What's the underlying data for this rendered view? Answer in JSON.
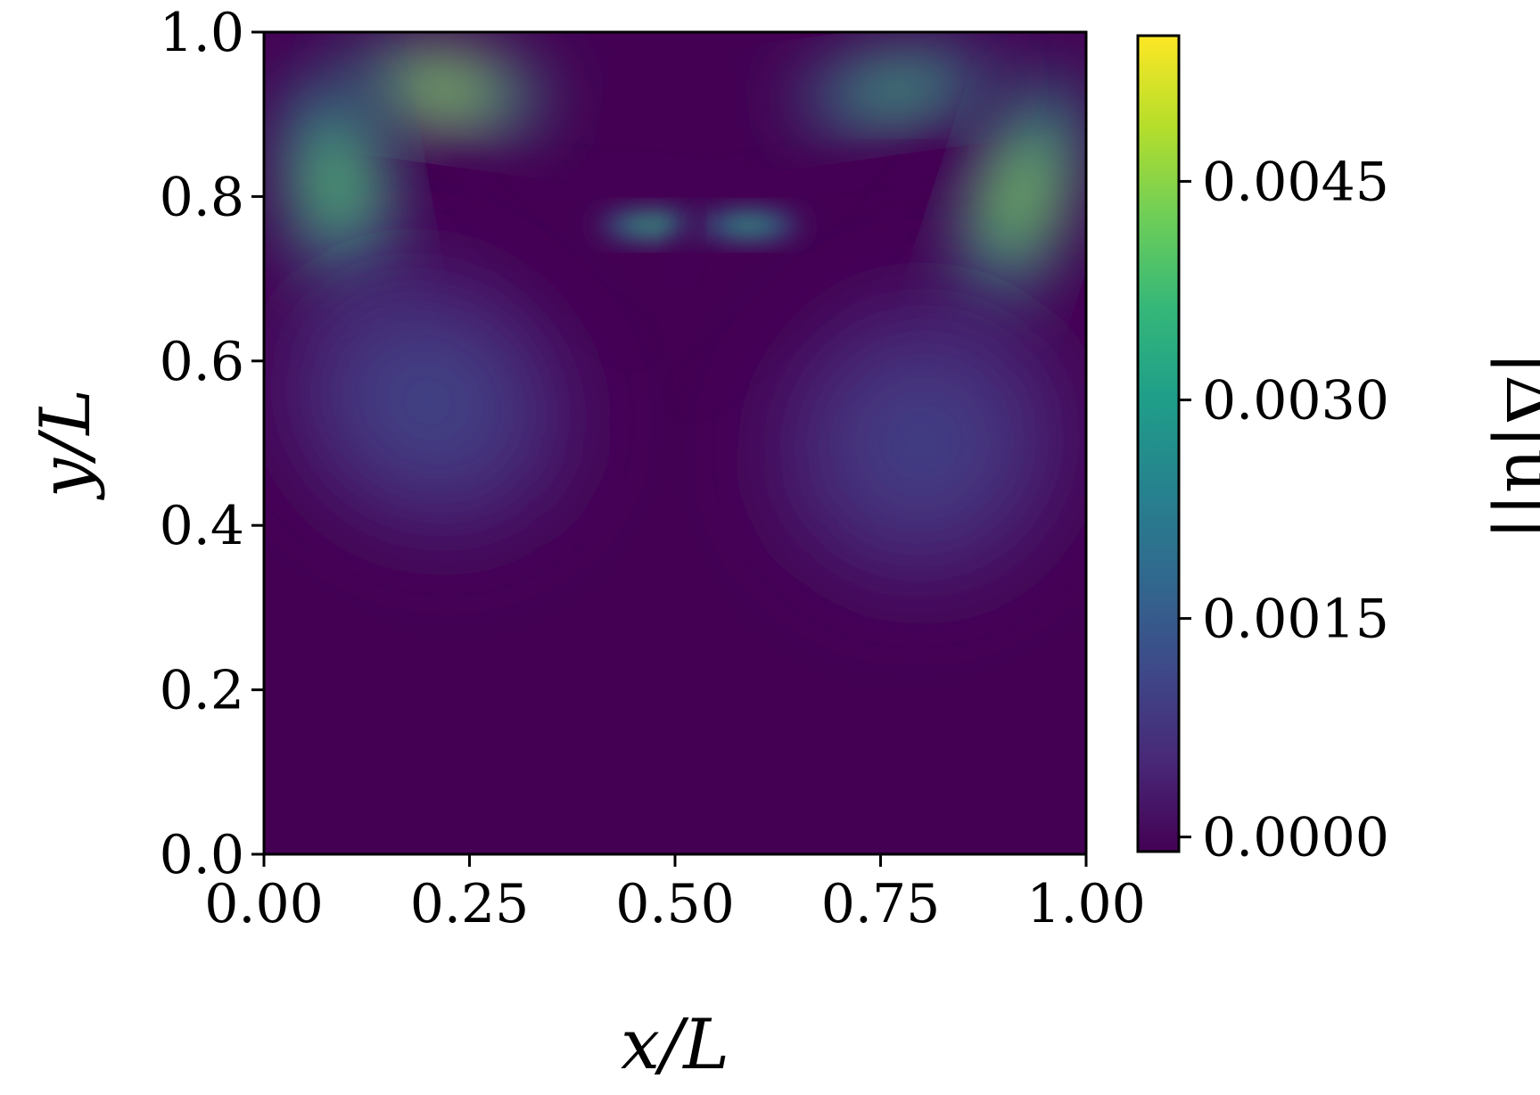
{
  "chart_data": {
    "type": "heatmap",
    "title": "",
    "xlabel": "x/L",
    "ylabel": "y/L",
    "xlim": [
      0.0,
      1.0
    ],
    "ylim": [
      0.0,
      1.0
    ],
    "x_ticks": [
      {
        "value": 0.0,
        "label": "0.00"
      },
      {
        "value": 0.25,
        "label": "0.25"
      },
      {
        "value": 0.5,
        "label": "0.50"
      },
      {
        "value": 0.75,
        "label": "0.75"
      },
      {
        "value": 1.0,
        "label": "1.00"
      }
    ],
    "y_ticks": [
      {
        "value": 0.0,
        "label": "0.0"
      },
      {
        "value": 0.2,
        "label": "0.2"
      },
      {
        "value": 0.4,
        "label": "0.4"
      },
      {
        "value": 0.6,
        "label": "0.6"
      },
      {
        "value": 0.8,
        "label": "0.8"
      },
      {
        "value": 1.0,
        "label": "1.0"
      }
    ],
    "colorbar": {
      "label": "|Δ|u||",
      "range": [
        -0.0001,
        0.0055
      ],
      "ticks": [
        {
          "value": 0.0,
          "label": "0.0000"
        },
        {
          "value": 0.0015,
          "label": "0.0015"
        },
        {
          "value": 0.003,
          "label": "0.0030"
        },
        {
          "value": 0.0045,
          "label": "0.0045"
        }
      ],
      "colormap": "viridis",
      "colormap_stops": [
        "#440154",
        "#482878",
        "#3e4989",
        "#31688e",
        "#26828e",
        "#1f9e89",
        "#35b779",
        "#6ece58",
        "#b5de2b",
        "#fde725"
      ]
    },
    "field_features": {
      "description_note": "",
      "blobs": [
        {
          "x": 0.22,
          "y": 0.93,
          "value": 0.0052
        },
        {
          "x": 0.09,
          "y": 0.81,
          "value": 0.0043
        },
        {
          "x": 0.92,
          "y": 0.8,
          "value": 0.0048
        },
        {
          "x": 0.77,
          "y": 0.93,
          "value": 0.004
        },
        {
          "x": 0.47,
          "y": 0.765,
          "value": 0.0038
        },
        {
          "x": 0.59,
          "y": 0.765,
          "value": 0.0036
        },
        {
          "x": 0.2,
          "y": 0.55,
          "value": 0.0012
        },
        {
          "x": 0.8,
          "y": 0.5,
          "value": 0.0011
        }
      ],
      "zero_lines": [
        {
          "points": [
            [
              0.23,
              0.835
            ],
            [
              0.3,
              0.83
            ],
            [
              0.45,
              0.82
            ],
            [
              0.55,
              0.81
            ],
            [
              0.7,
              0.84
            ],
            [
              0.82,
              0.86
            ]
          ]
        },
        {
          "points": [
            [
              0.23,
              0.835
            ],
            [
              0.3,
              0.75
            ],
            [
              0.38,
              0.67
            ],
            [
              0.45,
              0.62
            ]
          ]
        },
        {
          "points": [
            [
              0.82,
              0.86
            ],
            [
              0.74,
              0.75
            ],
            [
              0.63,
              0.65
            ],
            [
              0.52,
              0.56
            ]
          ]
        },
        {
          "points": [
            [
              0.53,
              0.78
            ],
            [
              0.51,
              0.74
            ],
            [
              0.49,
              0.7
            ]
          ]
        }
      ]
    }
  }
}
